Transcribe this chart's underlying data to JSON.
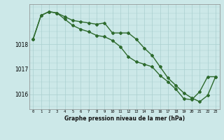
{
  "hours": [
    0,
    1,
    2,
    3,
    4,
    5,
    6,
    7,
    8,
    9,
    10,
    11,
    12,
    13,
    14,
    15,
    16,
    17,
    18,
    19,
    20,
    21,
    22,
    23
  ],
  "pressure_upper": [
    1018.2,
    1019.15,
    1019.3,
    1019.25,
    1019.1,
    1018.95,
    1018.9,
    1018.85,
    1018.8,
    1018.85,
    1018.45,
    1018.45,
    1018.45,
    1018.2,
    1017.85,
    1017.55,
    1017.1,
    1016.65,
    1016.35,
    1016.05,
    1015.85,
    1015.7,
    1015.95,
    1016.7
  ],
  "pressure_lower": [
    1018.2,
    1019.15,
    1019.3,
    1019.25,
    1019.0,
    1018.75,
    1018.6,
    1018.5,
    1018.35,
    1018.3,
    1018.15,
    1017.9,
    1017.5,
    1017.3,
    1017.2,
    1017.1,
    1016.75,
    1016.5,
    1016.2,
    1015.82,
    1015.78,
    1016.1,
    1016.7,
    1016.7
  ],
  "line_color": "#2d6a2d",
  "bg_color": "#cce8e8",
  "grid_color": "#aacfcf",
  "ylim_min": 1015.4,
  "ylim_max": 1019.6,
  "yticks": [
    1016,
    1017,
    1018
  ],
  "xlabel": "Graphe pression niveau de la mer (hPa)",
  "markersize": 2.0,
  "linewidth": 1.0
}
